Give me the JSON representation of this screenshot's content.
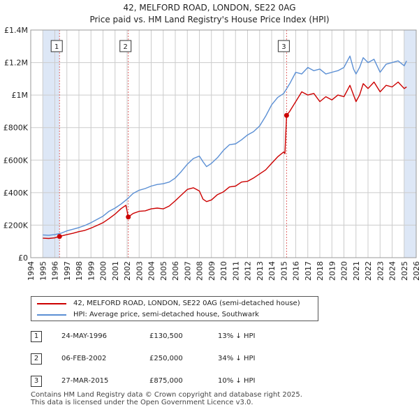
{
  "title": {
    "line1": "42, MELFORD ROAD, LONDON, SE22 0AG",
    "line2": "Price paid vs. HM Land Registry's House Price Index (HPI)"
  },
  "colors": {
    "price_line": "#cc0000",
    "hpi_line": "#5b8fd4",
    "shade": "#dde7f6",
    "grid": "#cccccc",
    "sale_marker": "#cc0000",
    "marker_line": "#e06666"
  },
  "chart_data": {
    "type": "line",
    "title": "Price paid vs. HM Land Registry's House Price Index (HPI)",
    "xlabel": "",
    "ylabel": "",
    "xlim": [
      1994,
      2026
    ],
    "ylim": [
      0,
      1400000
    ],
    "grid": true,
    "x_ticks": [
      "1994",
      "1995",
      "1996",
      "1997",
      "1998",
      "1999",
      "2000",
      "2001",
      "2002",
      "2003",
      "2004",
      "2005",
      "2006",
      "2007",
      "2008",
      "2009",
      "2010",
      "2011",
      "2012",
      "2013",
      "2014",
      "2015",
      "2016",
      "2017",
      "2018",
      "2019",
      "2020",
      "2021",
      "2022",
      "2023",
      "2024",
      "2025",
      "2026"
    ],
    "y_ticks": [
      {
        "value": 0,
        "label": "£0"
      },
      {
        "value": 200000,
        "label": "£200K"
      },
      {
        "value": 400000,
        "label": "£400K"
      },
      {
        "value": 600000,
        "label": "£600K"
      },
      {
        "value": 800000,
        "label": "£800K"
      },
      {
        "value": 1000000,
        "label": "£1M"
      },
      {
        "value": 1200000,
        "label": "£1.2M"
      },
      {
        "value": 1400000,
        "label": "£1.4M"
      }
    ],
    "shaded_periods": [
      [
        1995,
        1996.4
      ],
      [
        2025.0,
        2026
      ]
    ],
    "series": [
      {
        "name": "42, MELFORD ROAD, LONDON, SE22 0AG (semi-detached house)",
        "x": [
          1995.0,
          1995.5,
          1996.0,
          1996.39,
          1997.0,
          1997.5,
          1998.0,
          1998.5,
          1999.0,
          1999.5,
          2000.0,
          2000.5,
          2001.0,
          2001.5,
          2001.9,
          2002.1,
          2002.5,
          2003.0,
          2003.5,
          2004.0,
          2004.5,
          2005.0,
          2005.5,
          2006.0,
          2006.5,
          2007.0,
          2007.5,
          2008.0,
          2008.3,
          2008.6,
          2009.0,
          2009.5,
          2010.0,
          2010.5,
          2011.0,
          2011.5,
          2012.0,
          2012.5,
          2013.0,
          2013.5,
          2014.0,
          2014.5,
          2015.0,
          2015.1,
          2015.24,
          2015.5,
          2016.0,
          2016.5,
          2017.0,
          2017.5,
          2018.0,
          2018.5,
          2019.0,
          2019.5,
          2020.0,
          2020.5,
          2020.8,
          2021.0,
          2021.3,
          2021.6,
          2022.0,
          2022.5,
          2023.0,
          2023.5,
          2024.0,
          2024.5,
          2025.0,
          2025.2
        ],
        "values": [
          120000,
          118000,
          122000,
          130500,
          142000,
          150000,
          160000,
          168000,
          182000,
          198000,
          215000,
          240000,
          268000,
          302000,
          322000,
          250000,
          272000,
          285000,
          288000,
          300000,
          305000,
          300000,
          318000,
          350000,
          385000,
          420000,
          430000,
          410000,
          360000,
          345000,
          355000,
          388000,
          405000,
          435000,
          440000,
          465000,
          470000,
          490000,
          515000,
          540000,
          580000,
          620000,
          650000,
          640000,
          875000,
          900000,
          960000,
          1020000,
          1000000,
          1010000,
          960000,
          990000,
          970000,
          1000000,
          990000,
          1060000,
          1000000,
          960000,
          1000000,
          1070000,
          1040000,
          1080000,
          1020000,
          1060000,
          1050000,
          1080000,
          1040000,
          1050000
        ]
      },
      {
        "name": "HPI: Average price, semi-detached house, Southwark",
        "x": [
          1995.0,
          1995.5,
          1996.0,
          1996.5,
          1997.0,
          1997.5,
          1998.0,
          1998.5,
          1999.0,
          1999.5,
          2000.0,
          2000.5,
          2001.0,
          2001.5,
          2002.0,
          2002.5,
          2003.0,
          2003.5,
          2004.0,
          2004.5,
          2005.0,
          2005.5,
          2006.0,
          2006.5,
          2007.0,
          2007.5,
          2008.0,
          2008.3,
          2008.6,
          2009.0,
          2009.5,
          2010.0,
          2010.5,
          2011.0,
          2011.5,
          2012.0,
          2012.5,
          2013.0,
          2013.5,
          2014.0,
          2014.5,
          2015.0,
          2015.5,
          2016.0,
          2016.5,
          2017.0,
          2017.5,
          2018.0,
          2018.5,
          2019.0,
          2019.5,
          2020.0,
          2020.5,
          2020.8,
          2021.0,
          2021.3,
          2021.6,
          2022.0,
          2022.5,
          2023.0,
          2023.5,
          2024.0,
          2024.5,
          2025.0,
          2025.2
        ],
        "values": [
          140000,
          138000,
          142000,
          150000,
          165000,
          175000,
          185000,
          198000,
          215000,
          235000,
          255000,
          285000,
          305000,
          330000,
          360000,
          395000,
          415000,
          425000,
          440000,
          450000,
          455000,
          465000,
          490000,
          530000,
          575000,
          610000,
          625000,
          590000,
          560000,
          580000,
          615000,
          660000,
          695000,
          700000,
          725000,
          755000,
          775000,
          810000,
          870000,
          940000,
          985000,
          1010000,
          1070000,
          1140000,
          1130000,
          1170000,
          1150000,
          1160000,
          1130000,
          1140000,
          1150000,
          1170000,
          1240000,
          1160000,
          1130000,
          1170000,
          1230000,
          1200000,
          1220000,
          1140000,
          1190000,
          1200000,
          1210000,
          1180000,
          1210000
        ]
      }
    ],
    "sales": [
      {
        "label": "1",
        "x": 1996.39,
        "value": 130500
      },
      {
        "label": "2",
        "x": 2002.1,
        "value": 250000
      },
      {
        "label": "3",
        "x": 2015.24,
        "value": 875000
      }
    ]
  },
  "legend": {
    "price_label": "42, MELFORD ROAD, LONDON, SE22 0AG (semi-detached house)",
    "hpi_label": "HPI: Average price, semi-detached house, Southwark"
  },
  "sales_table": [
    {
      "num": "1",
      "date": "24-MAY-1996",
      "price": "£130,500",
      "hpi": "13% ↓ HPI"
    },
    {
      "num": "2",
      "date": "06-FEB-2002",
      "price": "£250,000",
      "hpi": "34% ↓ HPI"
    },
    {
      "num": "3",
      "date": "27-MAR-2015",
      "price": "£875,000",
      "hpi": "10% ↓ HPI"
    }
  ],
  "footer": {
    "line1": "Contains HM Land Registry data © Crown copyright and database right 2025.",
    "line2": "This data is licensed under the Open Government Licence v3.0."
  }
}
